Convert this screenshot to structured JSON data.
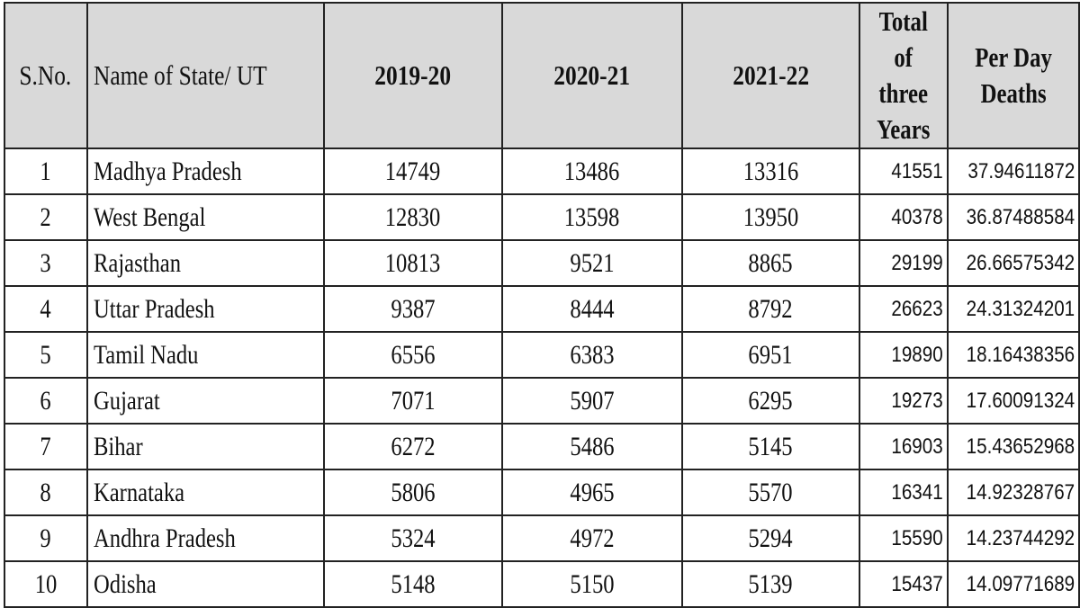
{
  "table": {
    "headers": {
      "sno": "S.No.",
      "name": "Name of State/ UT",
      "y1": "2019-20",
      "y2": "2020-21",
      "y3": "2021-22",
      "total": "Total of three Years",
      "per_day": "Per Day Deaths"
    },
    "rows": [
      {
        "sno": "1",
        "name": "Madhya Pradesh",
        "y1": "14749",
        "y2": "13486",
        "y3": "13316",
        "total": "41551",
        "per_day": "37.94611872"
      },
      {
        "sno": "2",
        "name": "West Bengal",
        "y1": "12830",
        "y2": "13598",
        "y3": "13950",
        "total": "40378",
        "per_day": "36.87488584"
      },
      {
        "sno": "3",
        "name": "Rajasthan",
        "y1": "10813",
        "y2": "9521",
        "y3": "8865",
        "total": "29199",
        "per_day": "26.66575342"
      },
      {
        "sno": "4",
        "name": "Uttar Pradesh",
        "y1": "9387",
        "y2": "8444",
        "y3": "8792",
        "total": "26623",
        "per_day": "24.31324201"
      },
      {
        "sno": "5",
        "name": "Tamil Nadu",
        "y1": "6556",
        "y2": "6383",
        "y3": "6951",
        "total": "19890",
        "per_day": "18.16438356"
      },
      {
        "sno": "6",
        "name": "Gujarat",
        "y1": "7071",
        "y2": "5907",
        "y3": "6295",
        "total": "19273",
        "per_day": "17.60091324"
      },
      {
        "sno": "7",
        "name": "Bihar",
        "y1": "6272",
        "y2": "5486",
        "y3": "5145",
        "total": "16903",
        "per_day": "15.43652968"
      },
      {
        "sno": "8",
        "name": "Karnataka",
        "y1": "5806",
        "y2": "4965",
        "y3": "5570",
        "total": "16341",
        "per_day": "14.92328767"
      },
      {
        "sno": "9",
        "name": "Andhra Pradesh",
        "y1": "5324",
        "y2": "4972",
        "y3": "5294",
        "total": "15590",
        "per_day": "14.23744292"
      },
      {
        "sno": "10",
        "name": "Odisha",
        "y1": "5148",
        "y2": "5150",
        "y3": "5139",
        "total": "15437",
        "per_day": "14.09771689"
      }
    ]
  }
}
